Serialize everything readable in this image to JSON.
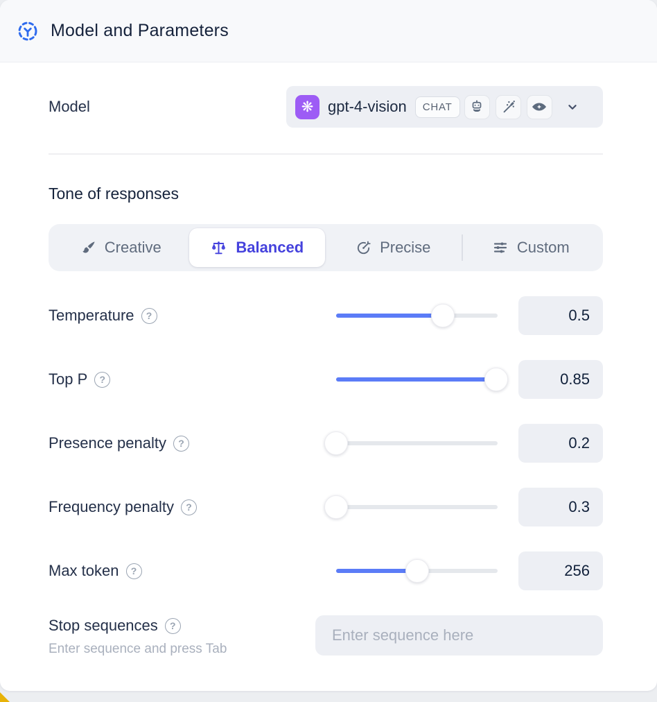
{
  "header": {
    "title": "Model and Parameters"
  },
  "model": {
    "label": "Model",
    "selected_model": "gpt-4-vision",
    "type_badge": "CHAT",
    "provider_icon": "openai-logo",
    "capability_icons": [
      "robot-icon",
      "magic-wand-icon",
      "vision-eye-icon"
    ]
  },
  "tone": {
    "heading": "Tone of responses",
    "selected": "Balanced",
    "options": [
      {
        "label": "Creative",
        "icon": "paintbrush-icon"
      },
      {
        "label": "Balanced",
        "icon": "scales-icon"
      },
      {
        "label": "Precise",
        "icon": "target-icon"
      },
      {
        "label": "Custom",
        "icon": "sliders-icon"
      }
    ]
  },
  "parameters": [
    {
      "label": "Temperature",
      "value": "0.5",
      "percent": 66
    },
    {
      "label": "Top P",
      "value": "0.85",
      "percent": 99
    },
    {
      "label": "Presence penalty",
      "value": "0.2",
      "percent": 0
    },
    {
      "label": "Frequency penalty",
      "value": "0.3",
      "percent": 0
    },
    {
      "label": "Max token",
      "value": "256",
      "percent": 50
    }
  ],
  "stop_sequences": {
    "label": "Stop sequences",
    "helper": "Enter sequence and press Tab",
    "placeholder": "Enter sequence here"
  },
  "colors": {
    "accent": "#4542dd",
    "slider": "#5b7cf7",
    "provider": "#9d5cf5",
    "header_icon": "#2f6bee"
  }
}
